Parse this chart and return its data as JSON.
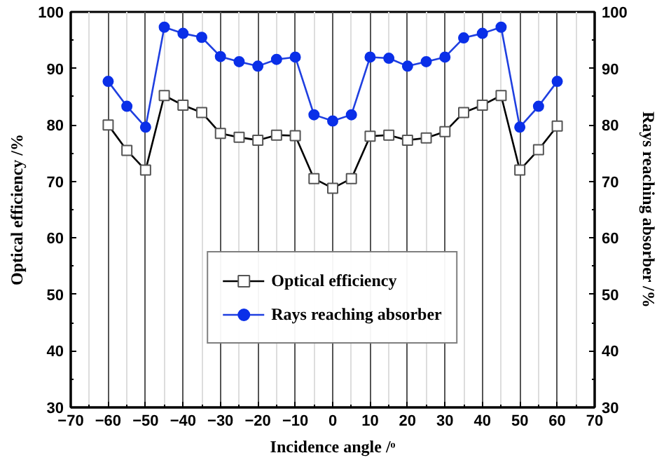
{
  "chart_data": {
    "type": "line",
    "xlabel": "Incidence angle /ᵒ",
    "ylabel": "Optical efficiency /%",
    "y2label": "Rays reaching absorber /%",
    "x": [
      -60,
      -55,
      -50,
      -45,
      -40,
      -35,
      -30,
      -25,
      -20,
      -15,
      -10,
      -5,
      0,
      5,
      10,
      15,
      20,
      25,
      30,
      35,
      40,
      45,
      50,
      55,
      60
    ],
    "series": [
      {
        "name": "Optical efficiency",
        "color": "#000000",
        "marker": "square",
        "values": [
          80,
          75.5,
          72,
          85.2,
          83.5,
          82.2,
          78.5,
          77.8,
          77.3,
          78.2,
          78.1,
          70.5,
          68.8,
          70.5,
          78,
          78.2,
          77.3,
          77.7,
          78.8,
          82.2,
          83.5,
          85.2,
          72,
          75.6,
          79.8
        ]
      },
      {
        "name": "Rays reaching absorber",
        "color": "#1f3fe0",
        "marker": "circle",
        "values": [
          87.7,
          83.3,
          79.6,
          97.3,
          96.2,
          95.5,
          92.1,
          91.2,
          90.4,
          91.6,
          92,
          81.8,
          80.7,
          81.8,
          92,
          91.8,
          90.4,
          91.2,
          92,
          95.4,
          96.2,
          97.3,
          79.6,
          83.3,
          87.7
        ]
      }
    ],
    "xlim": [
      -70,
      70
    ],
    "xticks": [
      -70,
      -60,
      -50,
      -40,
      -30,
      -20,
      -10,
      0,
      10,
      20,
      30,
      40,
      50,
      60,
      70
    ],
    "ylim": [
      30,
      100
    ],
    "yticks": [
      30,
      40,
      50,
      60,
      70,
      80,
      90,
      100
    ],
    "y2lim": [
      30,
      100
    ],
    "y2ticks": [
      30,
      40,
      50,
      60,
      70,
      80,
      90,
      100
    ],
    "grid": "x",
    "legend": "bottom",
    "line_style": "solid"
  }
}
